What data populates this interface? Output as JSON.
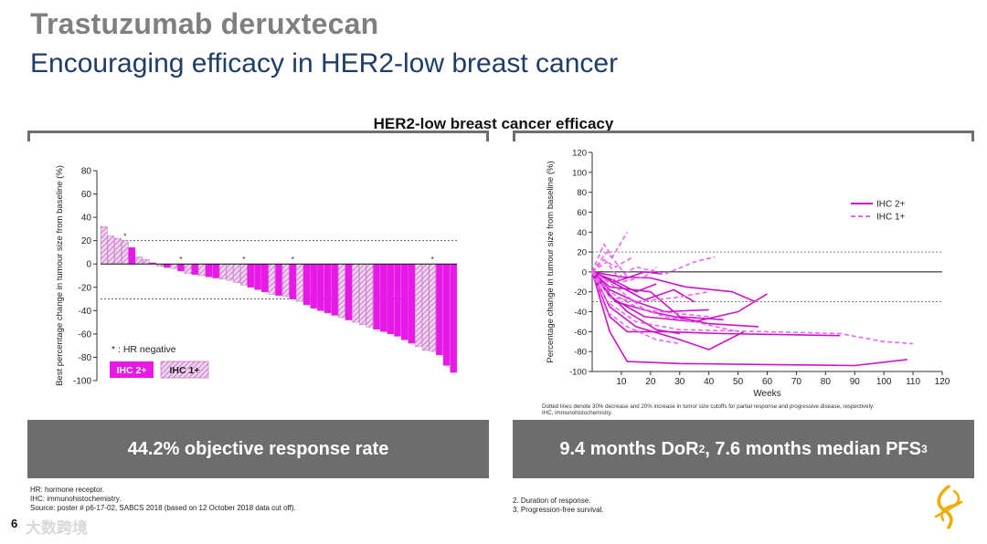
{
  "header": {
    "title": "Trastuzumab deruxtecan",
    "subtitle": "Encouraging efficacy in HER2-low breast cancer"
  },
  "chart_heading": "HER2-low breast cancer efficacy",
  "left_panel": {
    "banner": "44.2% objective response rate"
  },
  "right_panel": {
    "banner_main": "9.4 months DoR",
    "banner_sup1": "2",
    "banner_mid": ", 7.6 months median PFS",
    "banner_sup2": "3",
    "note1": "Dotted lines denote 30% decrease and 20% increase in tumor size cutoffs for partial response and progressive disease, respectively.",
    "note2": "IHC, immunohistochemistry."
  },
  "footnotes_left": [
    "HR: hormone receptor.",
    "IHC: immunohistochemistry.",
    "Source: poster # p6-17-02, SABCS 2018 (based on 12 October 2018 data cut off)."
  ],
  "footnotes_right": [
    "2. Duration of response.",
    "3. Progression-free survival."
  ],
  "page_number": "6",
  "watermark": "大数跨境",
  "colors": {
    "magenta": "#e619e6",
    "hatch": "#dd8fdd",
    "banner": "#6d6d6d",
    "subtitle": "#1f3d66"
  },
  "chart_data": [
    {
      "type": "bar",
      "title": "",
      "ylabel": "Best percentage change in tumour size from baseline (%)",
      "ylim": [
        -100,
        80
      ],
      "yticks": [
        80,
        60,
        40,
        20,
        0,
        -20,
        -40,
        -60,
        -80,
        -100
      ],
      "reference_lines": [
        20,
        -30
      ],
      "legend": {
        "hr_negative": "* : HR negative",
        "ihc2": "IHC 2+",
        "ihc1": "IHC 1+"
      },
      "categories": [
        "IHC 1+",
        "IHC 2+"
      ],
      "bars": [
        {
          "v": 32,
          "g": "IHC 1+"
        },
        {
          "v": 24,
          "g": "IHC 1+"
        },
        {
          "v": 22,
          "g": "IHC 1+"
        },
        {
          "v": 20,
          "g": "IHC 1+",
          "star": true
        },
        {
          "v": 14,
          "g": "IHC 2+"
        },
        {
          "v": 6,
          "g": "IHC 1+"
        },
        {
          "v": 4,
          "g": "IHC 1+"
        },
        {
          "v": 1,
          "g": "IHC 2+"
        },
        {
          "v": -2,
          "g": "IHC 1+"
        },
        {
          "v": -3,
          "g": "IHC 2+"
        },
        {
          "v": -4,
          "g": "IHC 1+"
        },
        {
          "v": -6,
          "g": "IHC 2+",
          "star": true
        },
        {
          "v": -8,
          "g": "IHC 1+"
        },
        {
          "v": -9,
          "g": "IHC 2+"
        },
        {
          "v": -10,
          "g": "IHC 1+"
        },
        {
          "v": -11,
          "g": "IHC 2+"
        },
        {
          "v": -12,
          "g": "IHC 2+"
        },
        {
          "v": -13,
          "g": "IHC 1+"
        },
        {
          "v": -14,
          "g": "IHC 1+"
        },
        {
          "v": -16,
          "g": "IHC 1+"
        },
        {
          "v": -18,
          "g": "IHC 1+",
          "star": true
        },
        {
          "v": -20,
          "g": "IHC 2+"
        },
        {
          "v": -22,
          "g": "IHC 2+"
        },
        {
          "v": -24,
          "g": "IHC 2+"
        },
        {
          "v": -26,
          "g": "IHC 1+"
        },
        {
          "v": -27,
          "g": "IHC 2+"
        },
        {
          "v": -28,
          "g": "IHC 1+"
        },
        {
          "v": -30,
          "g": "IHC 2+",
          "star": true
        },
        {
          "v": -32,
          "g": "IHC 1+"
        },
        {
          "v": -35,
          "g": "IHC 2+"
        },
        {
          "v": -38,
          "g": "IHC 2+"
        },
        {
          "v": -40,
          "g": "IHC 2+"
        },
        {
          "v": -42,
          "g": "IHC 2+"
        },
        {
          "v": -44,
          "g": "IHC 2+"
        },
        {
          "v": -46,
          "g": "IHC 1+"
        },
        {
          "v": -48,
          "g": "IHC 2+"
        },
        {
          "v": -50,
          "g": "IHC 1+"
        },
        {
          "v": -52,
          "g": "IHC 1+"
        },
        {
          "v": -54,
          "g": "IHC 1+"
        },
        {
          "v": -56,
          "g": "IHC 2+"
        },
        {
          "v": -58,
          "g": "IHC 2+"
        },
        {
          "v": -60,
          "g": "IHC 2+"
        },
        {
          "v": -62,
          "g": "IHC 2+"
        },
        {
          "v": -65,
          "g": "IHC 2+"
        },
        {
          "v": -68,
          "g": "IHC 2+"
        },
        {
          "v": -71,
          "g": "IHC 1+"
        },
        {
          "v": -74,
          "g": "IHC 1+"
        },
        {
          "v": -75,
          "g": "IHC 1+",
          "star": true
        },
        {
          "v": -78,
          "g": "IHC 2+"
        },
        {
          "v": -87,
          "g": "IHC 2+"
        },
        {
          "v": -93,
          "g": "IHC 2+"
        }
      ]
    },
    {
      "type": "line",
      "xlabel": "Weeks",
      "ylabel": "Percentage change in tumour size from baseline (%)",
      "xlim": [
        0,
        120
      ],
      "ylim": [
        -100,
        120
      ],
      "xticks": [
        10,
        20,
        30,
        40,
        50,
        60,
        70,
        80,
        90,
        100,
        110,
        120
      ],
      "yticks": [
        120,
        100,
        80,
        60,
        40,
        20,
        0,
        -20,
        -40,
        -60,
        -80,
        -100
      ],
      "reference_lines": [
        20,
        -30
      ],
      "legend": [
        "IHC 2+",
        "IHC 1+"
      ],
      "series": [
        {
          "name": "IHC 2+",
          "points": [
            [
              0,
              0
            ],
            [
              6,
              -60
            ],
            [
              12,
              -90
            ],
            [
              30,
              -92
            ],
            [
              60,
              -93
            ],
            [
              90,
              -94
            ],
            [
              108,
              -88
            ]
          ]
        },
        {
          "name": "IHC 2+",
          "points": [
            [
              0,
              0
            ],
            [
              6,
              -45
            ],
            [
              12,
              -60
            ],
            [
              25,
              -60
            ],
            [
              45,
              -62
            ],
            [
              65,
              -63
            ],
            [
              85,
              -64
            ]
          ]
        },
        {
          "name": "IHC 2+",
          "points": [
            [
              0,
              0
            ],
            [
              6,
              -35
            ],
            [
              15,
              -55
            ],
            [
              30,
              -68
            ],
            [
              40,
              -78
            ],
            [
              52,
              -60
            ]
          ]
        },
        {
          "name": "IHC 2+",
          "points": [
            [
              0,
              0
            ],
            [
              8,
              -30
            ],
            [
              20,
              -40
            ],
            [
              40,
              -52
            ],
            [
              57,
              -55
            ]
          ]
        },
        {
          "name": "IHC 2+",
          "points": [
            [
              0,
              0
            ],
            [
              6,
              -25
            ],
            [
              18,
              -45
            ],
            [
              35,
              -50
            ],
            [
              50,
              -40
            ],
            [
              60,
              -22
            ]
          ]
        },
        {
          "name": "IHC 2+",
          "points": [
            [
              0,
              0
            ],
            [
              6,
              -18
            ],
            [
              15,
              -30
            ],
            [
              25,
              -40
            ],
            [
              40,
              -38
            ]
          ]
        },
        {
          "name": "IHC 2+",
          "points": [
            [
              0,
              0
            ],
            [
              6,
              -15
            ],
            [
              20,
              -20
            ],
            [
              30,
              -45
            ],
            [
              45,
              -48
            ]
          ]
        },
        {
          "name": "IHC 2+",
          "points": [
            [
              0,
              0
            ],
            [
              8,
              -10
            ],
            [
              18,
              0
            ],
            [
              24,
              -2
            ]
          ]
        },
        {
          "name": "IHC 2+",
          "points": [
            [
              0,
              0
            ],
            [
              8,
              -12
            ],
            [
              18,
              -28
            ],
            [
              28,
              -18
            ],
            [
              35,
              -30
            ]
          ]
        },
        {
          "name": "IHC 2+",
          "points": [
            [
              0,
              0
            ],
            [
              5,
              -20
            ],
            [
              12,
              -40
            ],
            [
              22,
              -58
            ],
            [
              30,
              -62
            ]
          ]
        },
        {
          "name": "IHC 2+",
          "points": [
            [
              0,
              0
            ],
            [
              7,
              -8
            ],
            [
              15,
              -20
            ],
            [
              22,
              -12
            ]
          ]
        },
        {
          "name": "IHC 2+",
          "points": [
            [
              0,
              0
            ],
            [
              10,
              -5
            ],
            [
              20,
              -6
            ],
            [
              32,
              -15
            ],
            [
              48,
              -20
            ],
            [
              56,
              -30
            ]
          ]
        },
        {
          "name": "IHC 1+",
          "points": [
            [
              0,
              0
            ],
            [
              5,
              -30
            ],
            [
              15,
              -50
            ],
            [
              30,
              -58
            ],
            [
              60,
              -60
            ],
            [
              85,
              -62
            ],
            [
              100,
              -70
            ],
            [
              110,
              -72
            ]
          ]
        },
        {
          "name": "IHC 1+",
          "points": [
            [
              0,
              0
            ],
            [
              5,
              20
            ],
            [
              8,
              10
            ],
            [
              12,
              -5
            ]
          ]
        },
        {
          "name": "IHC 1+",
          "points": [
            [
              0,
              0
            ],
            [
              4,
              28
            ],
            [
              7,
              15
            ],
            [
              10,
              30
            ],
            [
              12,
              40
            ]
          ]
        },
        {
          "name": "IHC 1+",
          "points": [
            [
              0,
              0
            ],
            [
              6,
              -10
            ],
            [
              15,
              5
            ],
            [
              25,
              -2
            ],
            [
              35,
              10
            ],
            [
              42,
              15
            ]
          ]
        },
        {
          "name": "IHC 1+",
          "points": [
            [
              0,
              0
            ],
            [
              6,
              -20
            ],
            [
              15,
              -35
            ],
            [
              25,
              -45
            ],
            [
              35,
              -50
            ],
            [
              50,
              -60
            ]
          ]
        },
        {
          "name": "IHC 1+",
          "points": [
            [
              0,
              0
            ],
            [
              5,
              -40
            ],
            [
              12,
              -55
            ],
            [
              22,
              -68
            ],
            [
              30,
              -72
            ]
          ]
        },
        {
          "name": "IHC 1+",
          "points": [
            [
              0,
              0
            ],
            [
              6,
              -25
            ],
            [
              15,
              -30
            ],
            [
              28,
              -26
            ],
            [
              40,
              -20
            ]
          ]
        },
        {
          "name": "IHC 1+",
          "points": [
            [
              0,
              0
            ],
            [
              5,
              10
            ],
            [
              10,
              -10
            ],
            [
              18,
              -5
            ],
            [
              22,
              5
            ]
          ]
        },
        {
          "name": "IHC 1+",
          "points": [
            [
              0,
              0
            ],
            [
              8,
              -15
            ],
            [
              18,
              -38
            ],
            [
              30,
              -42
            ],
            [
              40,
              -45
            ]
          ]
        },
        {
          "name": "IHC 1+",
          "points": [
            [
              0,
              0
            ],
            [
              4,
              12
            ],
            [
              8,
              5
            ],
            [
              14,
              15
            ]
          ]
        }
      ]
    }
  ]
}
